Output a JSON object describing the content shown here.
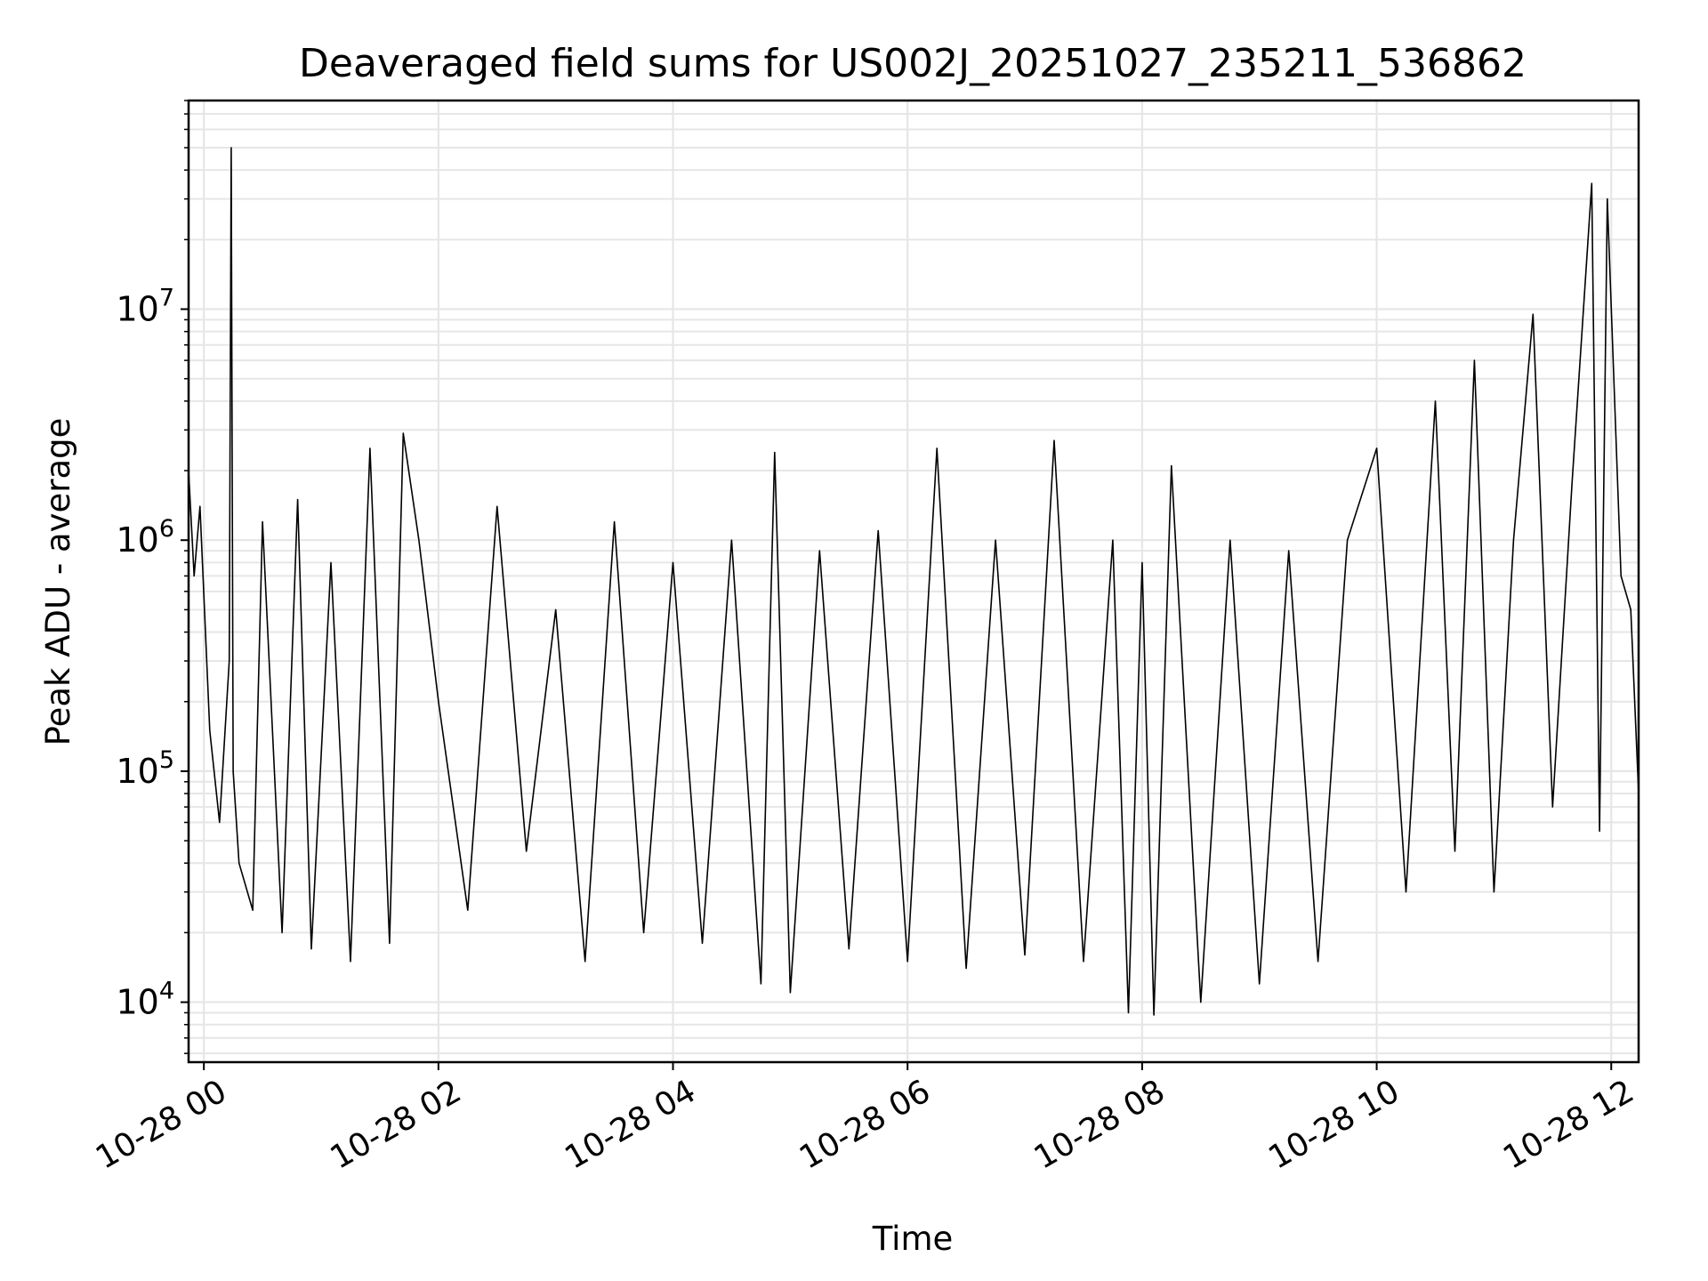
{
  "chart_data": {
    "type": "line",
    "title": "Deaveraged field sums for US002J_20251027_235211_536862",
    "xlabel": "Time",
    "ylabel": "Peak ADU - average",
    "x_range": [
      "2025-10-27T23:52:11",
      "2025-10-28T12:14:00"
    ],
    "ylim": [
      5500,
      80000000
    ],
    "yscale": "log",
    "grid": true,
    "line_color": "#000000",
    "x_ticks": [
      {
        "label": "10-28 00",
        "value": "2025-10-28T00:00:00"
      },
      {
        "label": "10-28 02",
        "value": "2025-10-28T02:00:00"
      },
      {
        "label": "10-28 04",
        "value": "2025-10-28T04:00:00"
      },
      {
        "label": "10-28 06",
        "value": "2025-10-28T06:00:00"
      },
      {
        "label": "10-28 08",
        "value": "2025-10-28T08:00:00"
      },
      {
        "label": "10-28 10",
        "value": "2025-10-28T10:00:00"
      },
      {
        "label": "10-28 12",
        "value": "2025-10-28T12:00:00"
      }
    ],
    "y_ticks": [
      {
        "base": "10",
        "exp": "4",
        "value": 10000
      },
      {
        "base": "10",
        "exp": "5",
        "value": 100000
      },
      {
        "base": "10",
        "exp": "6",
        "value": 1000000
      },
      {
        "base": "10",
        "exp": "7",
        "value": 10000000
      }
    ],
    "series": [
      {
        "x": [
          "2025-10-27T23:52:11",
          "2025-10-27T23:55:00",
          "2025-10-27T23:58:00",
          "2025-10-28T00:03:00",
          "2025-10-28T00:08:00",
          "2025-10-28T00:13:00",
          "2025-10-28T00:14:00",
          "2025-10-28T00:15:00",
          "2025-10-28T00:18:00",
          "2025-10-28T00:25:00",
          "2025-10-28T00:30:00",
          "2025-10-28T00:40:00",
          "2025-10-28T00:48:00",
          "2025-10-28T00:55:00",
          "2025-10-28T01:05:00",
          "2025-10-28T01:15:00",
          "2025-10-28T01:25:00",
          "2025-10-28T01:35:00",
          "2025-10-28T01:42:00",
          "2025-10-28T01:50:00",
          "2025-10-28T02:00:00",
          "2025-10-28T02:15:00",
          "2025-10-28T02:30:00",
          "2025-10-28T02:45:00",
          "2025-10-28T03:00:00",
          "2025-10-28T03:15:00",
          "2025-10-28T03:30:00",
          "2025-10-28T03:45:00",
          "2025-10-28T04:00:00",
          "2025-10-28T04:15:00",
          "2025-10-28T04:30:00",
          "2025-10-28T04:45:00",
          "2025-10-28T04:52:00",
          "2025-10-28T05:00:00",
          "2025-10-28T05:15:00",
          "2025-10-28T05:30:00",
          "2025-10-28T05:45:00",
          "2025-10-28T06:00:00",
          "2025-10-28T06:15:00",
          "2025-10-28T06:30:00",
          "2025-10-28T06:45:00",
          "2025-10-28T07:00:00",
          "2025-10-28T07:15:00",
          "2025-10-28T07:30:00",
          "2025-10-28T07:45:00",
          "2025-10-28T07:53:00",
          "2025-10-28T08:00:00",
          "2025-10-28T08:06:00",
          "2025-10-28T08:15:00",
          "2025-10-28T08:30:00",
          "2025-10-28T08:45:00",
          "2025-10-28T09:00:00",
          "2025-10-28T09:15:00",
          "2025-10-28T09:30:00",
          "2025-10-28T09:45:00",
          "2025-10-28T10:00:00",
          "2025-10-28T10:15:00",
          "2025-10-28T10:30:00",
          "2025-10-28T10:40:00",
          "2025-10-28T10:50:00",
          "2025-10-28T11:00:00",
          "2025-10-28T11:10:00",
          "2025-10-28T11:20:00",
          "2025-10-28T11:30:00",
          "2025-10-28T11:40:00",
          "2025-10-28T11:50:00",
          "2025-10-28T11:54:00",
          "2025-10-28T11:58:00",
          "2025-10-28T12:05:00",
          "2025-10-28T12:10:00",
          "2025-10-28T12:14:00"
        ],
        "y": [
          2000000,
          700000,
          1400000,
          150000,
          60000,
          300000,
          50000000,
          100000,
          40000,
          25000,
          1200000,
          20000,
          1500000,
          17000,
          800000,
          15000,
          2500000,
          18000,
          2900000,
          1000000,
          200000,
          25000,
          1400000,
          45000,
          500000,
          15000,
          1200000,
          20000,
          800000,
          18000,
          1000000,
          12000,
          2400000,
          11000,
          900000,
          17000,
          1100000,
          15000,
          2500000,
          14000,
          1000000,
          16000,
          2700000,
          15000,
          1000000,
          9000,
          800000,
          8800,
          2100000,
          10000,
          1000000,
          12000,
          900000,
          15000,
          1000000,
          2500000,
          30000,
          4000000,
          45000,
          6000000,
          30000,
          1000000,
          9500000,
          70000,
          1800000,
          35000000,
          55000,
          30000000,
          700000,
          500000,
          80000
        ]
      }
    ]
  }
}
